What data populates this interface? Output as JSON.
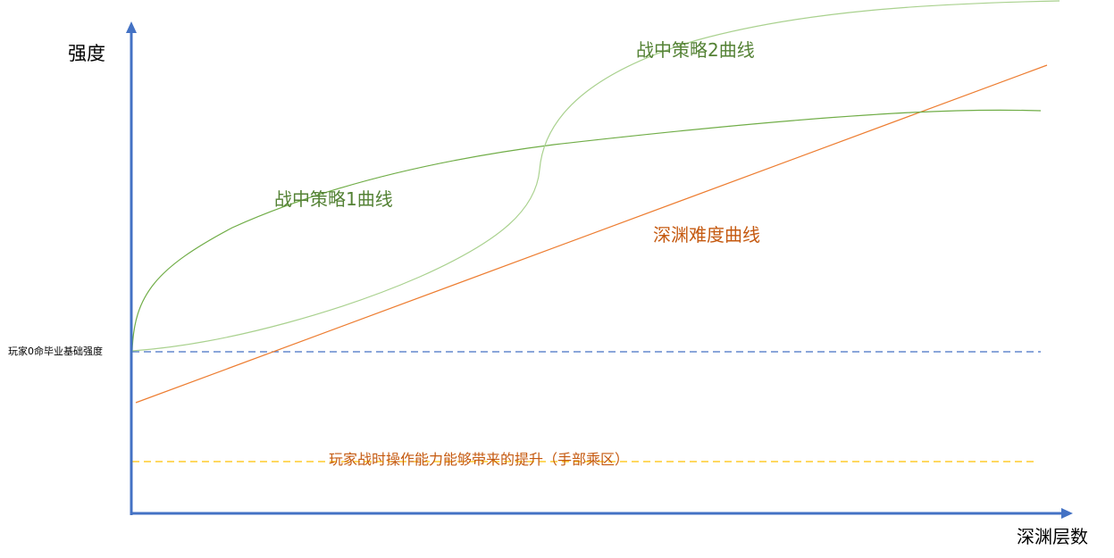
{
  "axes": {
    "y_label": "强度",
    "x_label": "深渊层数"
  },
  "reference_lines": {
    "baseline_label": "玩家0命毕业基础强度",
    "baseline_color": "#4472C4",
    "skill_band_label": "玩家战时操作能力能够带来的提升（手部乘区）",
    "skill_band_color": "#FFC000"
  },
  "curves": {
    "strategy1": {
      "label": "战中策略1曲线",
      "color": "#70AD47"
    },
    "strategy2": {
      "label": "战中策略2曲线",
      "color": "#A9D18E"
    },
    "abyss": {
      "label": "深渊难度曲线",
      "color": "#ED7D31"
    }
  },
  "colors": {
    "axis": "#4472C4",
    "strategy1_text": "#548235",
    "abyss_text": "#C55A11",
    "skill_text": "#C55A11",
    "label_text": "#000000"
  }
}
